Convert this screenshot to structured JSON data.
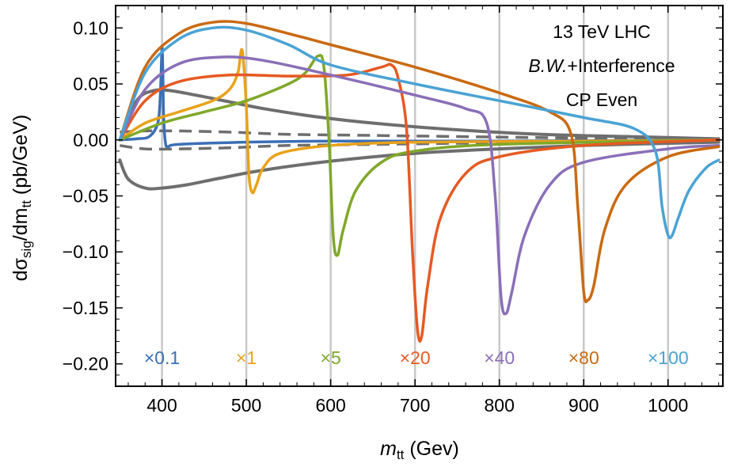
{
  "chart_data": {
    "type": "line",
    "xlabel": {
      "var": "m",
      "sub": "tt",
      "rest": " (Gev)"
    },
    "ylabel": {
      "pre": "dσ",
      "sub1": "sig",
      "mid": "/dm",
      "sub2": "tt",
      "rest": " (pb/GeV)"
    },
    "xlim": [
      345,
      1065
    ],
    "ylim": [
      -0.22,
      0.12
    ],
    "xticks": [
      "400",
      "500",
      "600",
      "700",
      "800",
      "900",
      "1000"
    ],
    "xtick_values": [
      400,
      500,
      600,
      700,
      800,
      900,
      1000
    ],
    "yticks": [
      "0.10",
      "0.05",
      "0.00",
      "−0.05",
      "−0.10",
      "−0.15",
      "−0.20"
    ],
    "ytick_values": [
      0.1,
      0.05,
      0.0,
      -0.05,
      -0.1,
      -0.15,
      -0.2
    ],
    "gridlines_x": [
      400,
      500,
      600,
      700,
      800,
      900,
      1000
    ],
    "annotations": [
      "13 TeV LHC",
      "B.W.+Interference",
      "CP Even"
    ],
    "multipliers": [
      {
        "text": "×0.1",
        "color": "#3b6fb6",
        "x": 400
      },
      {
        "text": "×1",
        "color": "#e8a21a",
        "x": 500
      },
      {
        "text": "×5",
        "color": "#7fa829",
        "x": 600
      },
      {
        "text": "×20",
        "color": "#e55a22",
        "x": 700
      },
      {
        "text": "×40",
        "color": "#8a6fb8",
        "x": 800
      },
      {
        "text": "×80",
        "color": "#c96a12",
        "x": 900
      },
      {
        "text": "×100",
        "color": "#4aa3d4",
        "x": 1000
      }
    ],
    "series": [
      {
        "color": "#3b6fb6",
        "mass": 400,
        "width": "solid",
        "x": [
          350,
          370,
          385,
          395,
          398,
          400,
          401,
          402,
          404,
          407,
          420,
          500,
          600,
          800,
          1060
        ],
        "y": [
          0.0,
          0.001,
          0.003,
          0.015,
          0.04,
          0.082,
          0.06,
          0.02,
          -0.002,
          -0.006,
          -0.004,
          -0.002,
          -0.001,
          -0.001,
          0.0
        ]
      },
      {
        "color": "#e8a21a",
        "mass": 500,
        "width": "solid",
        "x": [
          350,
          380,
          420,
          460,
          480,
          490,
          495,
          500,
          503,
          507,
          512,
          520,
          540,
          600,
          700,
          900,
          1060
        ],
        "y": [
          0.0,
          0.015,
          0.025,
          0.035,
          0.045,
          0.06,
          0.08,
          0.03,
          -0.03,
          -0.047,
          -0.04,
          -0.025,
          -0.012,
          -0.005,
          -0.002,
          -0.001,
          0.0
        ]
      },
      {
        "color": "#7fa829",
        "mass": 600,
        "width": "solid",
        "x": [
          350,
          400,
          450,
          500,
          550,
          570,
          585,
          592,
          598,
          603,
          608,
          615,
          630,
          660,
          700,
          800,
          1060
        ],
        "y": [
          0.0,
          0.015,
          0.025,
          0.035,
          0.05,
          0.06,
          0.075,
          0.065,
          0.0,
          -0.085,
          -0.103,
          -0.08,
          -0.045,
          -0.02,
          -0.01,
          -0.004,
          0.0
        ]
      },
      {
        "color": "#e55a22",
        "mass": 700,
        "width": "solid",
        "x": [
          350,
          380,
          420,
          480,
          550,
          620,
          660,
          672,
          680,
          690,
          697,
          703,
          708,
          715,
          730,
          760,
          800,
          900,
          1060
        ],
        "y": [
          0.0,
          0.035,
          0.052,
          0.058,
          0.057,
          0.058,
          0.065,
          0.067,
          0.055,
          0.01,
          -0.1,
          -0.17,
          -0.175,
          -0.13,
          -0.07,
          -0.03,
          -0.015,
          -0.005,
          0.0
        ]
      },
      {
        "color": "#8a6fb8",
        "mass": 800,
        "width": "solid",
        "x": [
          350,
          380,
          420,
          470,
          520,
          600,
          700,
          760,
          785,
          795,
          802,
          808,
          815,
          830,
          860,
          900,
          1000,
          1060
        ],
        "y": [
          0.0,
          0.045,
          0.068,
          0.074,
          0.071,
          0.058,
          0.04,
          0.028,
          0.015,
          -0.05,
          -0.14,
          -0.155,
          -0.135,
          -0.085,
          -0.04,
          -0.02,
          -0.008,
          -0.005
        ]
      },
      {
        "color": "#c96a12",
        "mass": 900,
        "width": "solid",
        "x": [
          350,
          380,
          420,
          460,
          500,
          560,
          600,
          700,
          800,
          860,
          885,
          893,
          900,
          905,
          912,
          925,
          950,
          1000,
          1060
        ],
        "y": [
          0.0,
          0.065,
          0.095,
          0.105,
          0.104,
          0.093,
          0.085,
          0.065,
          0.042,
          0.025,
          0.005,
          -0.06,
          -0.135,
          -0.143,
          -0.13,
          -0.08,
          -0.04,
          -0.015,
          -0.006
        ]
      },
      {
        "color": "#4aa3d4",
        "mass": 1000,
        "width": "solid",
        "x": [
          350,
          380,
          420,
          460,
          500,
          550,
          600,
          700,
          800,
          900,
          960,
          985,
          993,
          1000,
          1005,
          1012,
          1025,
          1045,
          1060
        ],
        "y": [
          0.0,
          0.06,
          0.09,
          0.1,
          0.098,
          0.085,
          0.067,
          0.05,
          0.035,
          0.02,
          0.01,
          -0.01,
          -0.06,
          -0.085,
          -0.085,
          -0.07,
          -0.045,
          -0.025,
          -0.018
        ]
      },
      {
        "color": "#6e6e6e",
        "mass": 0,
        "width": "gray-solid",
        "x": [
          350,
          370,
          390,
          410,
          440,
          480,
          520,
          580,
          650,
          750,
          850,
          950,
          1060
        ],
        "y": [
          0.0,
          0.035,
          0.044,
          0.044,
          0.04,
          0.034,
          0.028,
          0.021,
          0.015,
          0.009,
          0.005,
          0.003,
          0.001
        ]
      },
      {
        "color": "#6e6e6e",
        "mass": 0,
        "width": "gray-solid",
        "x": [
          350,
          360,
          380,
          400,
          430,
          470,
          520,
          600,
          700,
          800,
          900,
          1000,
          1060
        ],
        "y": [
          -0.018,
          -0.035,
          -0.043,
          -0.043,
          -0.04,
          -0.034,
          -0.027,
          -0.019,
          -0.012,
          -0.008,
          -0.005,
          -0.003,
          -0.002
        ]
      },
      {
        "color": "#6e6e6e",
        "mass": 0,
        "width": "gray-dashed",
        "x": [
          350,
          380,
          420,
          480,
          550,
          650,
          750,
          850,
          950,
          1060
        ],
        "y": [
          0.007,
          0.008,
          0.008,
          0.007,
          0.005,
          0.004,
          0.003,
          0.002,
          0.001,
          0.001
        ]
      },
      {
        "color": "#6e6e6e",
        "mass": 0,
        "width": "gray-dashed",
        "x": [
          350,
          380,
          420,
          480,
          550,
          650,
          750,
          850,
          950,
          1060
        ],
        "y": [
          -0.005,
          -0.008,
          -0.008,
          -0.007,
          -0.005,
          -0.004,
          -0.003,
          -0.002,
          -0.001,
          -0.001
        ]
      }
    ]
  }
}
